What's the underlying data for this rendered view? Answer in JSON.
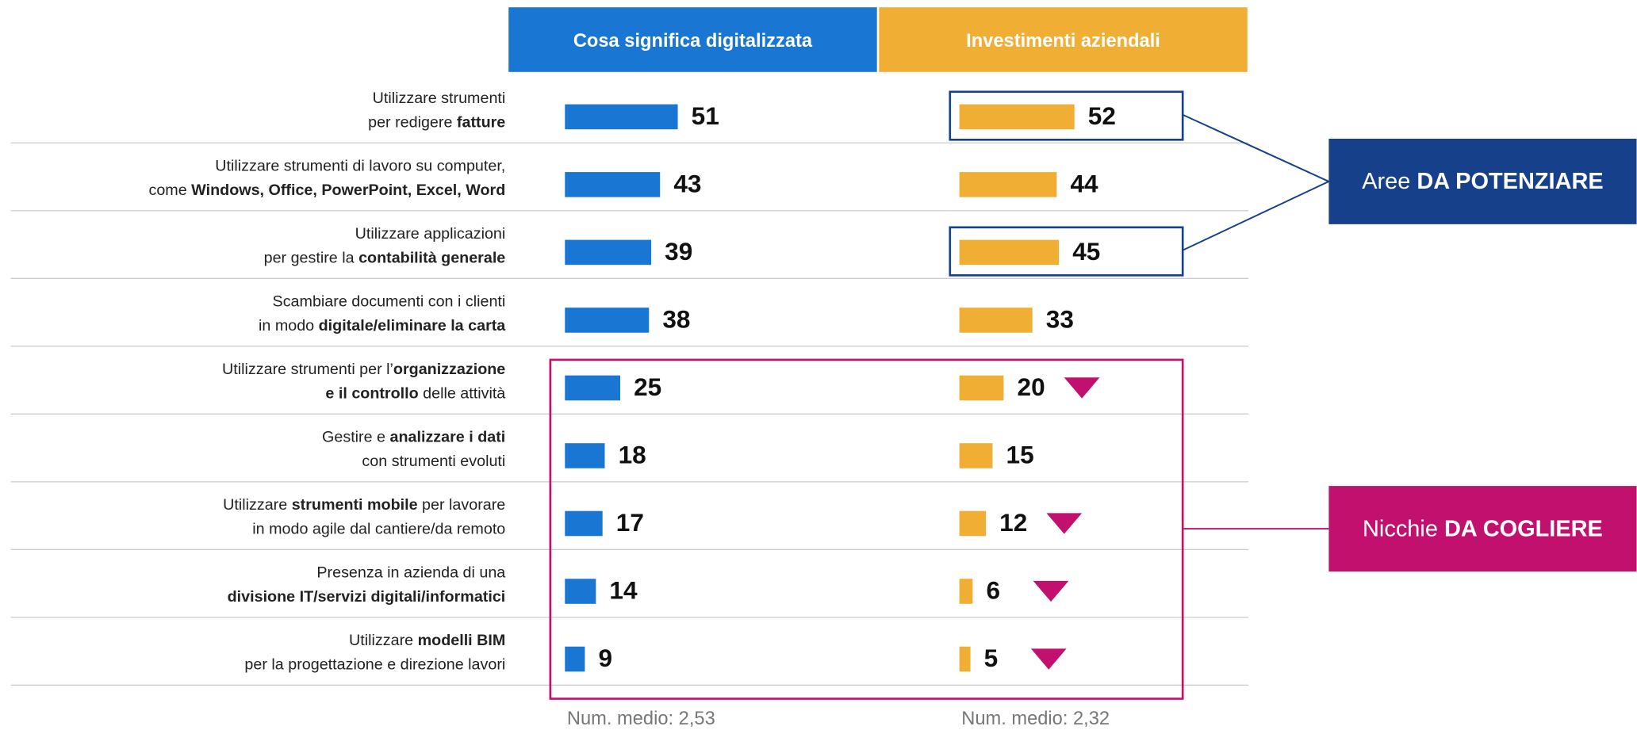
{
  "chart_data": {
    "type": "paired-bar",
    "categories": [
      [
        [
          {
            "text": "Utilizzare strumenti"
          }
        ],
        [
          {
            "text": "per redigere "
          },
          {
            "text": "fatture",
            "bold": true
          }
        ]
      ],
      [
        [
          {
            "text": "Utilizzare strumenti di lavoro su computer,"
          }
        ],
        [
          {
            "text": "come "
          },
          {
            "text": "Windows, Office, PowerPoint, Excel, Word",
            "bold": true
          }
        ]
      ],
      [
        [
          {
            "text": "Utilizzare applicazioni"
          }
        ],
        [
          {
            "text": "per gestire la "
          },
          {
            "text": "contabilità generale",
            "bold": true
          }
        ]
      ],
      [
        [
          {
            "text": "Scambiare documenti con i clienti"
          }
        ],
        [
          {
            "text": "in modo "
          },
          {
            "text": "digitale/eliminare la carta",
            "bold": true
          }
        ]
      ],
      [
        [
          {
            "text": "Utilizzare strumenti per l’"
          },
          {
            "text": "organizzazione",
            "bold": true
          }
        ],
        [
          {
            "text": "e il controllo",
            "bold": true
          },
          {
            "text": " delle attività"
          }
        ]
      ],
      [
        [
          {
            "text": "Gestire e "
          },
          {
            "text": "analizzare i dati",
            "bold": true
          }
        ],
        [
          {
            "text": "con strumenti evoluti"
          }
        ]
      ],
      [
        [
          {
            "text": "Utilizzare "
          },
          {
            "text": "strumenti mobile",
            "bold": true
          },
          {
            "text": " per lavorare"
          }
        ],
        [
          {
            "text": "in modo agile dal cantiere/da remoto"
          }
        ]
      ],
      [
        [
          {
            "text": "Presenza in azienda di una"
          }
        ],
        [
          {
            "text": "divisione IT/servizi digitali/informatici",
            "bold": true
          }
        ]
      ],
      [
        [
          {
            "text": "Utilizzare "
          },
          {
            "text": "modelli BIM",
            "bold": true
          }
        ],
        [
          {
            "text": "per la progettazione e direzione lavori"
          }
        ]
      ]
    ],
    "series": [
      {
        "name": "Cosa significa digitalizzata",
        "color": "#1976d2",
        "values": [
          51,
          43,
          39,
          38,
          25,
          18,
          17,
          14,
          9
        ],
        "note": "Num. medio: 2,53"
      },
      {
        "name": "Investimenti aziendali",
        "color": "#f0ae35",
        "values": [
          52,
          44,
          45,
          33,
          20,
          15,
          12,
          6,
          5
        ],
        "note": "Num. medio: 2,32",
        "declines": [
          false,
          false,
          false,
          false,
          true,
          false,
          true,
          true,
          true
        ],
        "decline_color": "#c2106e"
      }
    ],
    "annotations": [
      {
        "text": [
          {
            "text": "Aree "
          },
          {
            "text": "DA POTENZIARE",
            "bold": true
          }
        ],
        "color": "#17408b",
        "rows": [
          0,
          2
        ],
        "series": [
          1
        ]
      },
      {
        "text": [
          {
            "text": "Nicchie "
          },
          {
            "text": "DA COGLIERE",
            "bold": true
          }
        ],
        "color": "#c2106e",
        "rows": [
          4,
          5,
          6,
          7,
          8
        ],
        "series": [
          0,
          1
        ]
      }
    ]
  }
}
